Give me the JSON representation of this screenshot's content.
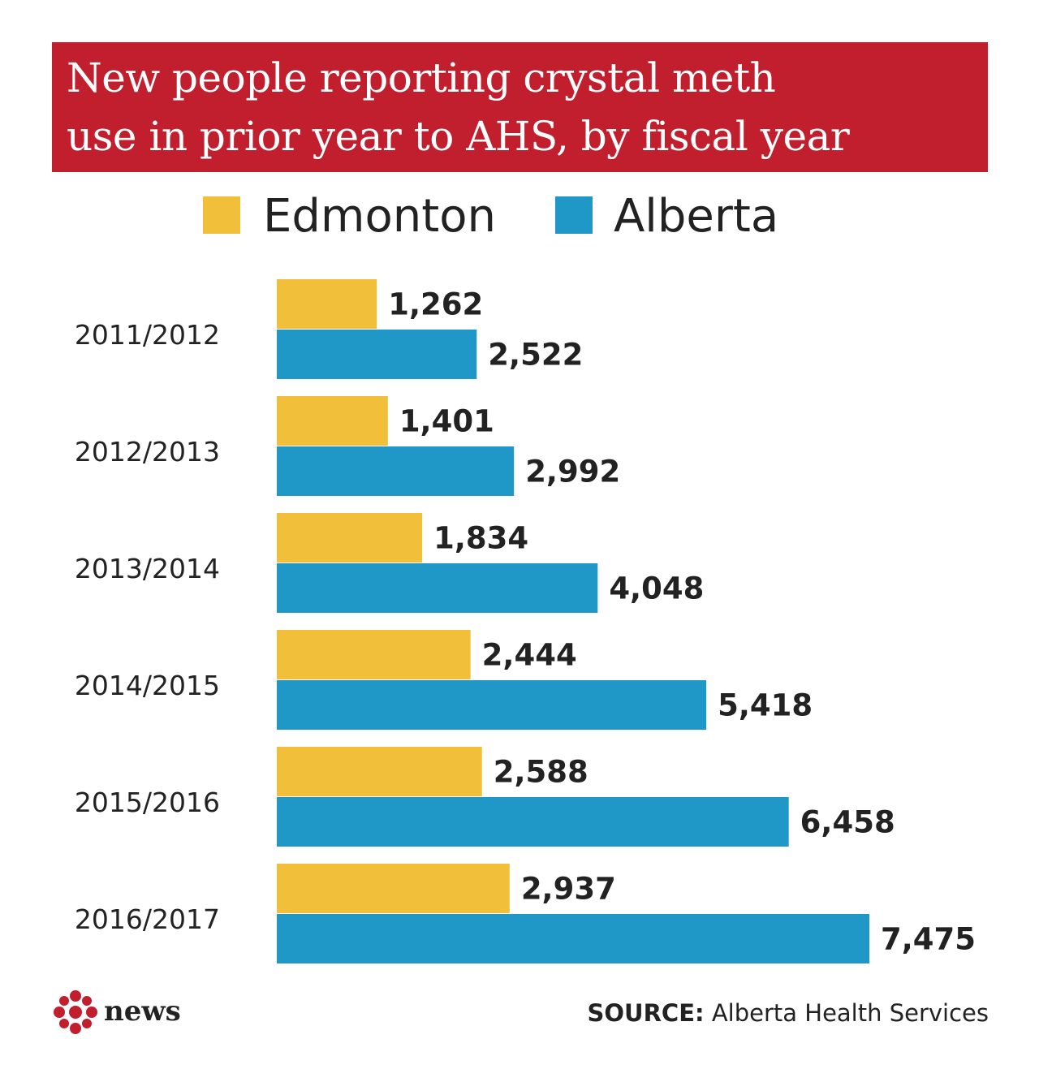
{
  "title": {
    "line1": "New people reporting crystal meth",
    "line2": "use in prior year to AHS, by fiscal year"
  },
  "colors": {
    "title_bg": "#c11f2d",
    "edmonton": "#f2bf3a",
    "alberta": "#1f97c7",
    "text": "#222222"
  },
  "legend": [
    {
      "label": "Edmonton",
      "color": "#f2bf3a"
    },
    {
      "label": "Alberta",
      "color": "#1f97c7"
    }
  ],
  "chart_data": {
    "type": "bar",
    "orientation": "horizontal",
    "title": "New people reporting crystal meth use in prior year to AHS, by fiscal year",
    "categories": [
      "2011/2012",
      "2012/2013",
      "2013/2014",
      "2014/2015",
      "2015/2016",
      "2016/2017"
    ],
    "series": [
      {
        "name": "Edmonton",
        "values": [
          1262,
          1401,
          1834,
          2444,
          2588,
          2937
        ],
        "labels": [
          "1,262",
          "1,401",
          "1,834",
          "2,444",
          "2,588",
          "2,937"
        ],
        "color": "#f2bf3a"
      },
      {
        "name": "Alberta",
        "values": [
          2522,
          2992,
          4048,
          5418,
          6458,
          7475
        ],
        "labels": [
          "2,522",
          "2,992",
          "4,048",
          "5,418",
          "6,458",
          "7,475"
        ],
        "color": "#1f97c7"
      }
    ],
    "xlim": [
      0,
      7475
    ],
    "grid": false,
    "legend_position": "top"
  },
  "footer": {
    "logo_text": "news",
    "source_label": "SOURCE:",
    "source_text": "Alberta Health Services"
  }
}
